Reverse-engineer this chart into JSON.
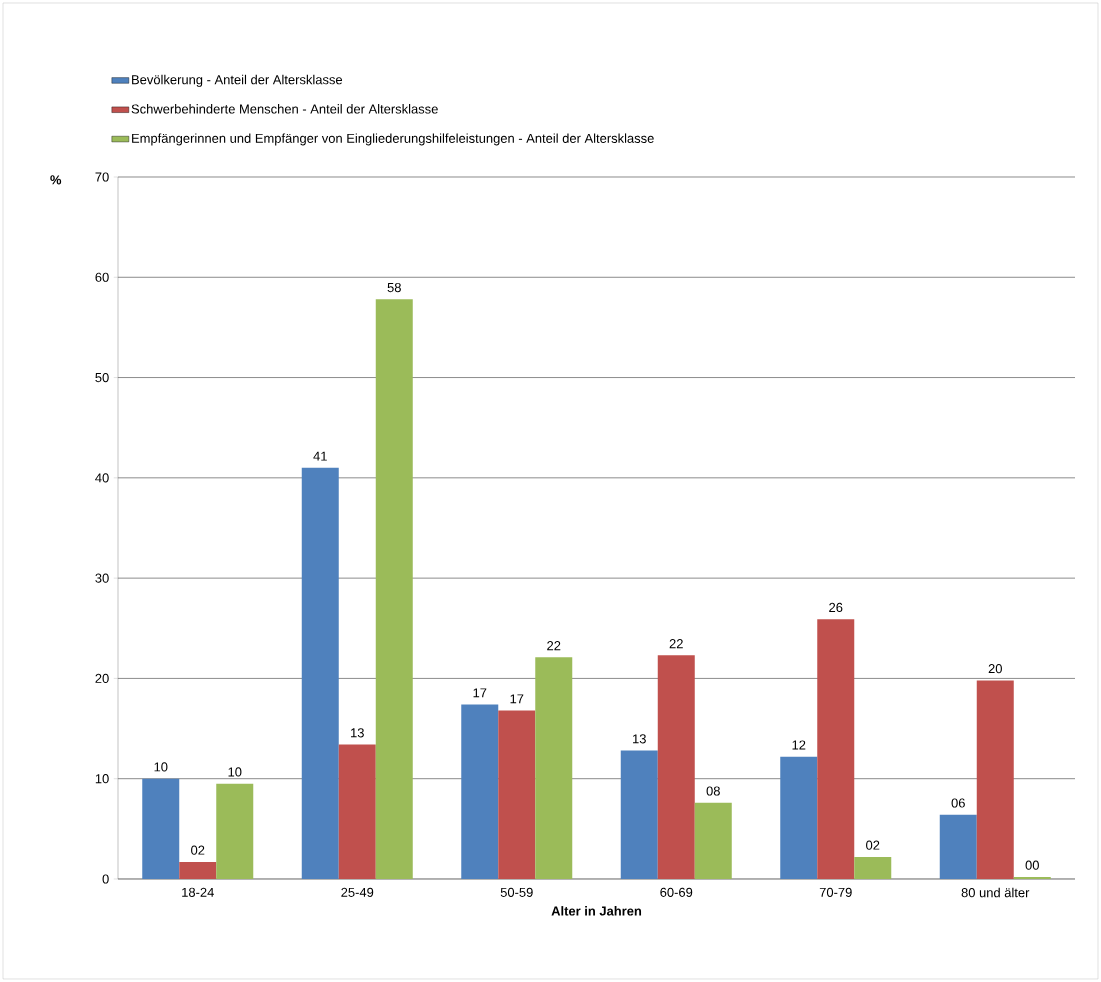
{
  "chart_data": {
    "type": "bar",
    "xlabel": "Alter in Jahren",
    "ylabel": "%",
    "categories": [
      "18-24",
      "25-49",
      "50-59",
      "60-69",
      "70-79",
      "80 und älter"
    ],
    "series": [
      {
        "name": "Bevölkerung - Anteil der Altersklasse",
        "color": "#4f81bd",
        "values": [
          10.0,
          41.0,
          17.4,
          12.8,
          12.2,
          6.4
        ],
        "value_labels": [
          "10",
          "41",
          "17",
          "13",
          "12",
          "06"
        ]
      },
      {
        "name": "Schwerbehinderte Menschen - Anteil der Altersklasse",
        "color": "#c0504d",
        "values": [
          1.7,
          13.4,
          16.8,
          22.3,
          25.9,
          19.8
        ],
        "value_labels": [
          "02",
          "13",
          "17",
          "22",
          "26",
          "20"
        ]
      },
      {
        "name": "Empfängerinnen und Empfänger von Eingliederungshilfeleistungen - Anteil der Altersklasse",
        "color": "#9bbb59",
        "values": [
          9.5,
          57.8,
          22.1,
          7.6,
          2.2,
          0.2
        ],
        "value_labels": [
          "10",
          "58",
          "22",
          "08",
          "02",
          "00"
        ]
      }
    ],
    "ylim": [
      0,
      70
    ],
    "yticks": [
      0,
      10,
      20,
      30,
      40,
      50,
      60,
      70
    ],
    "grid": "y",
    "legend": "top left"
  }
}
